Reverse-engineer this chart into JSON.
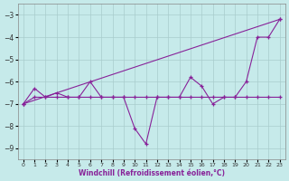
{
  "xlabel": "Windchill (Refroidissement éolien,°C)",
  "xlim": [
    -0.5,
    23.5
  ],
  "ylim": [
    -9.5,
    -2.5
  ],
  "yticks": [
    -9,
    -8,
    -7,
    -6,
    -5,
    -4,
    -3
  ],
  "xticks": [
    0,
    1,
    2,
    3,
    4,
    5,
    6,
    7,
    8,
    9,
    10,
    11,
    12,
    13,
    14,
    15,
    16,
    17,
    18,
    19,
    20,
    21,
    22,
    23
  ],
  "bg_color": "#c6eaea",
  "grid_color": "#a8cccc",
  "line_color": "#882299",
  "line1_x": [
    0,
    1,
    2,
    3,
    4,
    5,
    6,
    7,
    8,
    9,
    10,
    11,
    12,
    13,
    14,
    15,
    16,
    17,
    18,
    19,
    20,
    21,
    22,
    23
  ],
  "line1_y": [
    -7.0,
    -6.7,
    -6.7,
    -6.7,
    -6.7,
    -6.7,
    -6.7,
    -6.7,
    -6.7,
    -6.7,
    -6.7,
    -6.7,
    -6.7,
    -6.7,
    -6.7,
    -6.7,
    -6.7,
    -6.7,
    -6.7,
    -6.7,
    -6.7,
    -6.7,
    -6.7,
    -6.7
  ],
  "line2_x": [
    0,
    1,
    2,
    3,
    4,
    5,
    6,
    7,
    8,
    9,
    10,
    11,
    12,
    13,
    14,
    15,
    16,
    17,
    18,
    19,
    20,
    21,
    22,
    23
  ],
  "line2_y": [
    -7.0,
    -6.3,
    -6.7,
    -6.5,
    -6.7,
    -6.7,
    -6.0,
    -6.7,
    -6.7,
    -6.7,
    -8.1,
    -8.8,
    -6.7,
    -6.7,
    -6.7,
    -5.8,
    -6.2,
    -7.0,
    -6.7,
    -6.7,
    -6.0,
    -4.0,
    -4.0,
    -3.2
  ],
  "line3_x": [
    0,
    23
  ],
  "line3_y": [
    -7.0,
    -3.2
  ]
}
